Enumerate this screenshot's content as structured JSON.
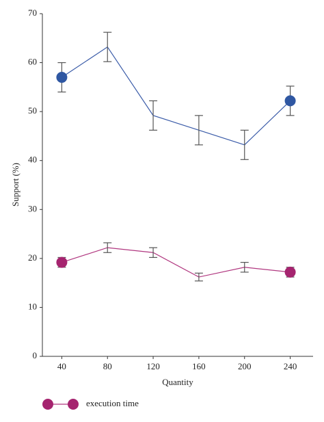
{
  "chart_data": {
    "type": "line",
    "x_label": "Quantity",
    "y_label": "Support (%)",
    "x": [
      40,
      80,
      120,
      160,
      200,
      240
    ],
    "series": [
      {
        "color": "#3a5ba8",
        "marker_color": "#2f57a2",
        "values": [
          57,
          63.2,
          49.2,
          46.2,
          43.2,
          52.2
        ],
        "errors": [
          3,
          3,
          3,
          3,
          3,
          3
        ]
      },
      {
        "name": "execution time",
        "color": "#b0367f",
        "marker_color": "#a5246f",
        "values": [
          19.2,
          22.2,
          21.2,
          16.2,
          18.2,
          17.2
        ],
        "errors": [
          1,
          1,
          1,
          0.8,
          1,
          1
        ]
      }
    ],
    "xlim": [
      23,
      260
    ],
    "ylim": [
      0,
      70
    ],
    "xticks": [
      40,
      80,
      120,
      160,
      200,
      240
    ],
    "yticks": [
      0,
      10,
      20,
      30,
      40,
      50,
      60,
      70
    ]
  }
}
